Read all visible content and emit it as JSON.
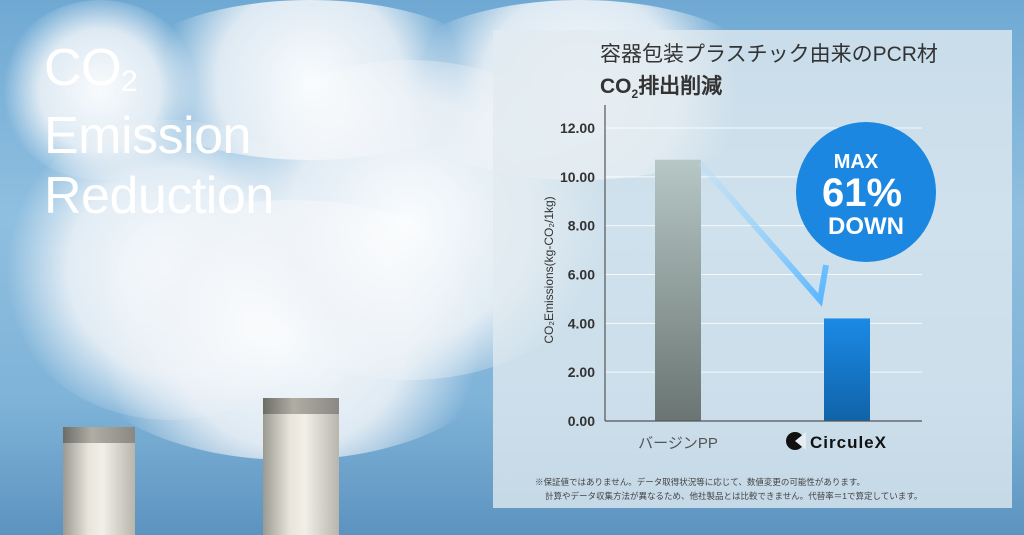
{
  "hero": {
    "line1_main": "CO",
    "line1_sub": "2",
    "line2": "Emission",
    "line3": "Reduction"
  },
  "panel": {
    "title": "容器包装プラスチック由来のPCR材",
    "subtitle_main": "CO",
    "subtitle_sub": "2",
    "subtitle_rest": "排出削減"
  },
  "badge": {
    "line1": "MAX",
    "line2": "61%",
    "line3": "DOWN",
    "color": "#1b87e0"
  },
  "footnotes": [
    "※保証値ではありません。データ取得状況等に応じて、数値変更の可能性があります。",
    "計算やデータ収集方法が異なるため、他社製品とは比較できません。代替率＝1で算定しています。"
  ],
  "chart_data": {
    "type": "bar",
    "categories": [
      "バージンPP",
      "CirculeX"
    ],
    "values": [
      10.7,
      4.2
    ],
    "ylabel": "CO₂Emissions(kg-CO₂/1kg)",
    "ylim": [
      0,
      12
    ],
    "yticks": [
      "0.00",
      "2.00",
      "4.00",
      "6.00",
      "8.00",
      "10.00",
      "12.00"
    ],
    "grid": true,
    "colors": [
      "#8e9d9b",
      "#1b87e0"
    ]
  }
}
